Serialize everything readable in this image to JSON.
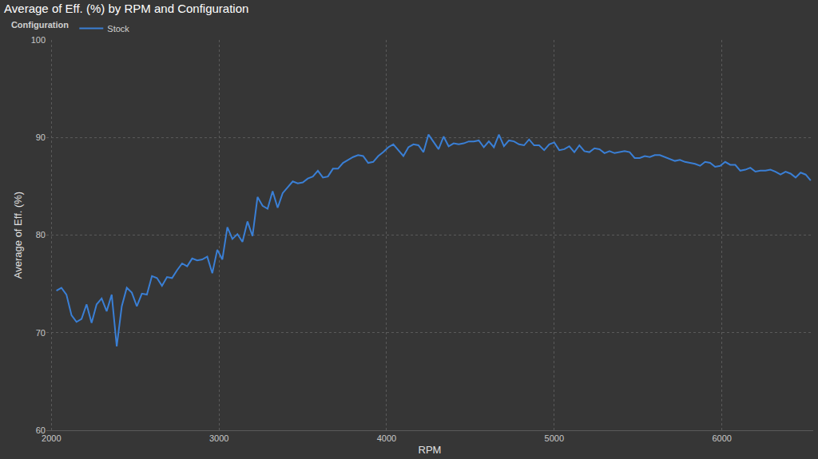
{
  "chart_data": {
    "type": "line",
    "title": "Average of Eff. (%) by RPM and Configuration",
    "x_label": "RPM",
    "y_label": "Average of Eff. (%)",
    "legend_title": "Configuration",
    "legend": "top-left",
    "grid": true,
    "xlim": [
      1970,
      6545
    ],
    "xticks": [
      2000,
      3000,
      4000,
      5000,
      6000
    ],
    "ylim": [
      60,
      100
    ],
    "yticks": [
      60,
      70,
      80,
      90,
      100
    ],
    "x": [
      2030,
      2060,
      2090,
      2120,
      2150,
      2180,
      2210,
      2240,
      2270,
      2300,
      2330,
      2360,
      2390,
      2420,
      2450,
      2480,
      2510,
      2540,
      2570,
      2600,
      2630,
      2660,
      2690,
      2720,
      2750,
      2780,
      2810,
      2840,
      2870,
      2900,
      2930,
      2960,
      2990,
      3020,
      3050,
      3080,
      3110,
      3140,
      3170,
      3200,
      3230,
      3260,
      3290,
      3320,
      3350,
      3380,
      3410,
      3440,
      3470,
      3500,
      3530,
      3560,
      3590,
      3620,
      3650,
      3680,
      3710,
      3740,
      3770,
      3800,
      3830,
      3860,
      3890,
      3920,
      3950,
      3980,
      4010,
      4040,
      4070,
      4100,
      4130,
      4160,
      4190,
      4220,
      4250,
      4280,
      4310,
      4340,
      4370,
      4400,
      4430,
      4460,
      4490,
      4520,
      4550,
      4580,
      4610,
      4640,
      4670,
      4700,
      4730,
      4760,
      4790,
      4820,
      4850,
      4880,
      4910,
      4940,
      4970,
      5000,
      5030,
      5060,
      5090,
      5120,
      5150,
      5180,
      5210,
      5240,
      5270,
      5300,
      5330,
      5360,
      5390,
      5420,
      5450,
      5480,
      5510,
      5540,
      5570,
      5600,
      5630,
      5660,
      5690,
      5720,
      5750,
      5780,
      5810,
      5840,
      5870,
      5900,
      5930,
      5960,
      5990,
      6020,
      6050,
      6080,
      6110,
      6140,
      6170,
      6200,
      6230,
      6260,
      6290,
      6320,
      6350,
      6380,
      6410,
      6440,
      6470,
      6500,
      6530
    ],
    "series": [
      {
        "name": "Stock",
        "color": "#3a7fd5",
        "line_style": "solid",
        "values": [
          74.3,
          74.6,
          73.9,
          71.8,
          71.1,
          71.4,
          72.9,
          71.0,
          72.9,
          73.5,
          72.2,
          73.9,
          68.6,
          72.7,
          74.6,
          74.1,
          72.7,
          74.0,
          73.9,
          75.8,
          75.6,
          74.8,
          75.7,
          75.6,
          76.4,
          77.1,
          76.8,
          77.6,
          77.4,
          77.5,
          77.8,
          76.1,
          78.5,
          77.5,
          80.8,
          79.6,
          80.1,
          79.3,
          81.4,
          79.9,
          83.9,
          83.0,
          82.7,
          84.5,
          82.8,
          84.3,
          84.9,
          85.5,
          85.3,
          85.4,
          85.8,
          86.0,
          86.6,
          85.9,
          86.0,
          86.8,
          86.8,
          87.4,
          87.7,
          88.0,
          88.2,
          88.1,
          87.4,
          87.5,
          88.1,
          88.5,
          89.0,
          89.3,
          88.7,
          88.1,
          89.0,
          89.3,
          89.2,
          88.5,
          90.3,
          89.6,
          88.8,
          90.1,
          89.1,
          89.4,
          89.3,
          89.4,
          89.6,
          89.6,
          89.7,
          89.0,
          89.6,
          89.0,
          90.3,
          89.1,
          89.7,
          89.6,
          89.3,
          89.2,
          89.8,
          89.2,
          89.2,
          88.7,
          89.3,
          89.5,
          88.7,
          88.8,
          89.1,
          88.5,
          89.2,
          88.6,
          88.5,
          88.9,
          88.8,
          88.4,
          88.6,
          88.4,
          88.5,
          88.6,
          88.5,
          87.9,
          87.9,
          88.1,
          88.0,
          88.2,
          88.2,
          88.0,
          87.8,
          87.6,
          87.7,
          87.5,
          87.4,
          87.3,
          87.1,
          87.5,
          87.4,
          87.0,
          87.1,
          87.5,
          87.2,
          87.2,
          86.6,
          86.7,
          86.9,
          86.5,
          86.6,
          86.6,
          86.7,
          86.5,
          86.2,
          86.5,
          86.3,
          85.9,
          86.4,
          86.2,
          85.6
        ]
      }
    ]
  }
}
